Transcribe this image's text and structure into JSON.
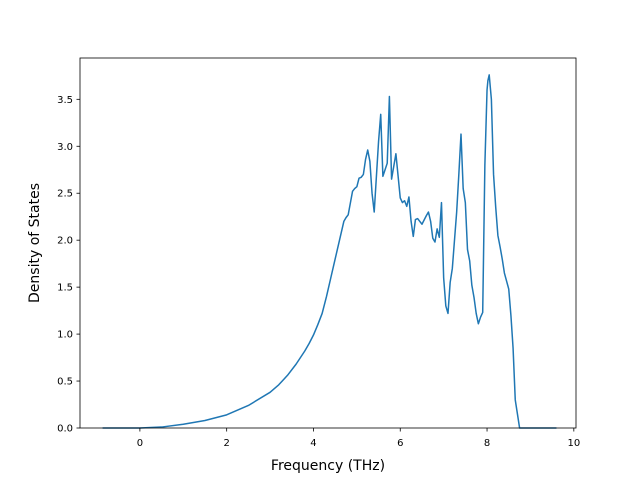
{
  "chart_data": {
    "type": "line",
    "title": "",
    "xlabel": "Frequency (THz)",
    "ylabel": "Density of States",
    "xlim": [
      -1.38,
      10.05
    ],
    "ylim": [
      0.0,
      3.94
    ],
    "xticks": [
      0,
      2,
      4,
      6,
      8,
      10
    ],
    "xtick_labels": [
      "0",
      "2",
      "4",
      "6",
      "8",
      "10"
    ],
    "yticks": [
      0.0,
      0.5,
      1.0,
      1.5,
      2.0,
      2.5,
      3.0,
      3.5
    ],
    "ytick_labels": [
      "0.0",
      "0.5",
      "1.0",
      "1.5",
      "2.0",
      "2.5",
      "3.0",
      "3.5"
    ],
    "grid": false,
    "legend": "none",
    "colors": {
      "line": "#1f77b4",
      "axes": "#000000",
      "background": "#ffffff"
    },
    "series": [
      {
        "x": [
          -0.86,
          -0.2,
          0.0,
          0.5,
          1.0,
          1.5,
          2.0,
          2.5,
          3.0,
          3.2,
          3.4,
          3.6,
          3.8,
          3.9,
          4.0,
          4.1,
          4.2,
          4.3,
          4.4,
          4.5,
          4.6,
          4.7,
          4.75,
          4.8,
          4.9,
          4.95,
          5.0,
          5.05,
          5.1,
          5.15,
          5.2,
          5.25,
          5.3,
          5.35,
          5.4,
          5.5,
          5.55,
          5.6,
          5.65,
          5.7,
          5.75,
          5.8,
          5.9,
          6.0,
          6.05,
          6.1,
          6.15,
          6.2,
          6.25,
          6.3,
          6.35,
          6.4,
          6.5,
          6.6,
          6.65,
          6.7,
          6.75,
          6.8,
          6.85,
          6.9,
          6.95,
          7.0,
          7.05,
          7.1,
          7.15,
          7.2,
          7.3,
          7.35,
          7.4,
          7.45,
          7.5,
          7.55,
          7.6,
          7.65,
          7.7,
          7.75,
          7.8,
          7.85,
          7.9,
          7.95,
          8.0,
          8.02,
          8.05,
          8.1,
          8.15,
          8.2,
          8.25,
          8.3,
          8.35,
          8.4,
          8.5,
          8.55,
          8.6,
          8.65,
          8.7,
          8.75,
          8.8,
          8.85,
          9.0,
          9.6
        ],
        "y": [
          0.0,
          0.0,
          0.0,
          0.01,
          0.04,
          0.08,
          0.14,
          0.24,
          0.38,
          0.46,
          0.56,
          0.68,
          0.82,
          0.9,
          0.99,
          1.1,
          1.22,
          1.4,
          1.6,
          1.8,
          2.0,
          2.2,
          2.24,
          2.27,
          2.52,
          2.55,
          2.57,
          2.66,
          2.67,
          2.7,
          2.86,
          2.96,
          2.84,
          2.5,
          2.3,
          3.05,
          3.34,
          2.68,
          2.75,
          2.82,
          3.53,
          2.65,
          2.92,
          2.45,
          2.4,
          2.42,
          2.36,
          2.46,
          2.2,
          2.04,
          2.22,
          2.23,
          2.17,
          2.26,
          2.3,
          2.2,
          2.02,
          1.98,
          2.12,
          2.03,
          2.4,
          1.6,
          1.3,
          1.22,
          1.55,
          1.7,
          2.3,
          2.7,
          3.13,
          2.55,
          2.4,
          1.9,
          1.78,
          1.52,
          1.39,
          1.22,
          1.11,
          1.18,
          1.23,
          2.8,
          3.6,
          3.7,
          3.76,
          3.5,
          2.7,
          2.35,
          2.05,
          1.93,
          1.8,
          1.65,
          1.48,
          1.2,
          0.85,
          0.3,
          0.15,
          0.0,
          0.0,
          0.0,
          0.0,
          0.0
        ]
      }
    ]
  }
}
